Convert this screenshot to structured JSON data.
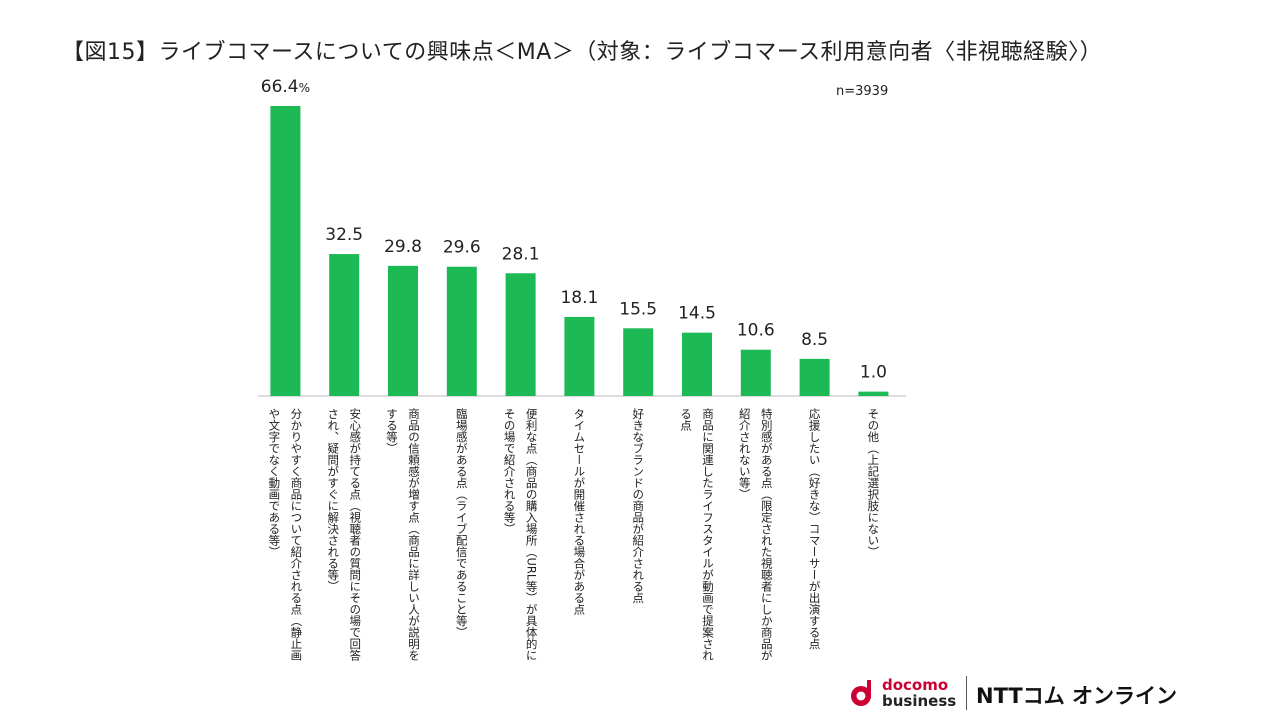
{
  "title": "【図15】ライブコマースについての興味点＜MA＞（対象：ライブコマース利用意向者〈非視聴経験〉）",
  "sample": "n=3939",
  "percent_sign": "%",
  "colors": {
    "bar": "#1db954",
    "axis": "#bbbbbb"
  },
  "chart_data": {
    "type": "bar",
    "title": "ライブコマースについての興味点＜MA＞",
    "ylabel": "%",
    "ylim": [
      0,
      70
    ],
    "grid": false,
    "categories": [
      "分かりやすく商品について紹介される点（静止画\nや文字でなく動画である等）",
      "安心感が持てる点（視聴者の質問にその場で回答\nされ、疑問がすぐに解決される等）",
      "商品の信頼感が増す点（商品に詳しい人が説明を\nする等）",
      "臨場感がある点（ライブ配信であること等）",
      "便利な点（商品の購入場所（URL等）が具体的に\nその場で紹介される等）",
      "タイムセールが開催される場合がある点",
      "好きなブランドの商品が紹介される点",
      "商品に関連したライフスタイルが動画で提案され\nる点",
      "特別感がある点（限定された視聴者にしか商品が\n紹介されない等）",
      "応援したい（好きな）コマーサーが出演する点",
      "その他（上記選択肢にない）"
    ],
    "values": [
      66.4,
      32.5,
      29.8,
      29.6,
      28.1,
      18.1,
      15.5,
      14.5,
      10.6,
      8.5,
      1.0
    ],
    "value_labels": [
      "66.4",
      "32.5",
      "29.8",
      "29.6",
      "28.1",
      "18.1",
      "15.5",
      "14.5",
      "10.6",
      "8.5",
      "1.0"
    ]
  },
  "logo": {
    "brand": "docomo",
    "sub": "business",
    "company": "NTTコム オンライン"
  }
}
